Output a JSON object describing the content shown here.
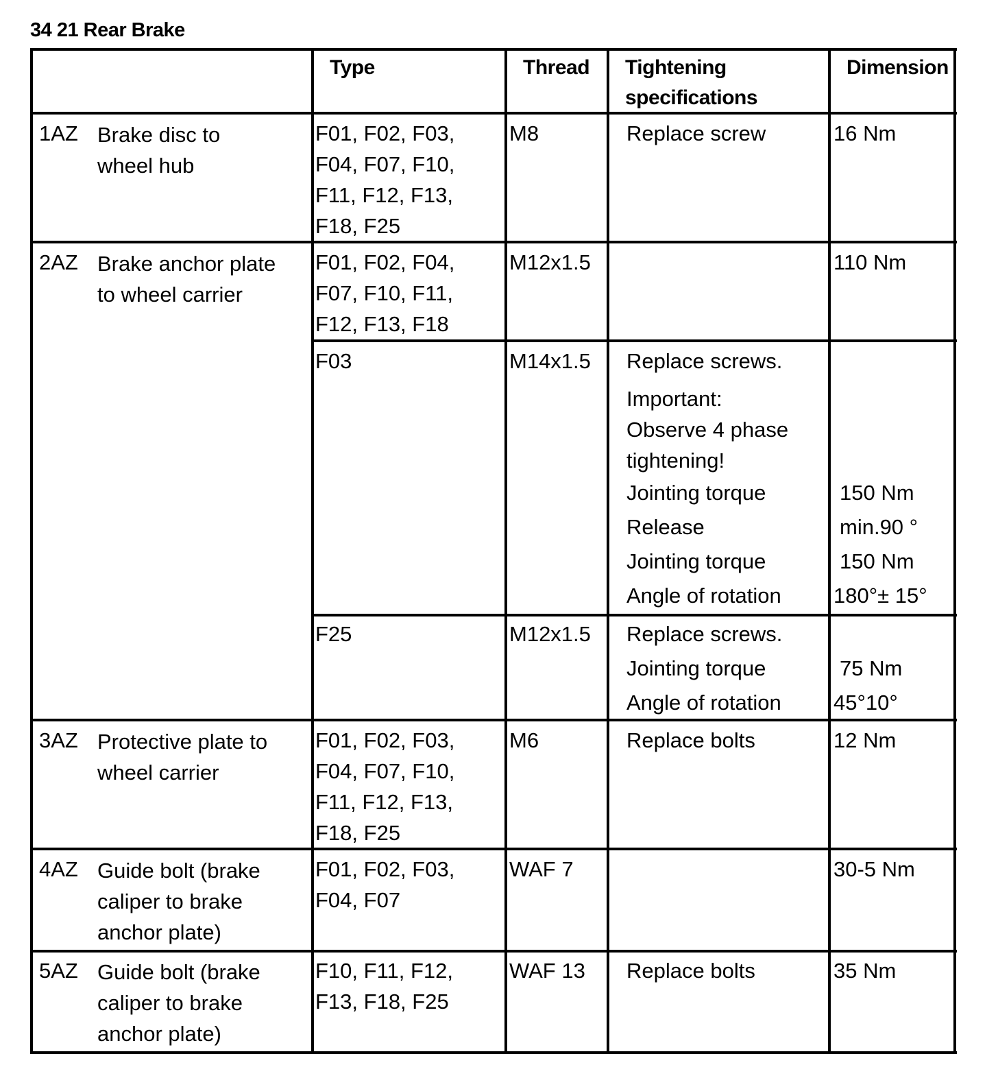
{
  "title": "34 21 Rear Brake",
  "headers": {
    "type": "Type",
    "thread": "Thread",
    "spec": [
      "Tightening",
      "specifications"
    ],
    "dimension": "Dimension"
  },
  "rows": [
    {
      "code": "1AZ",
      "desc": [
        "Brake disc to",
        "wheel hub"
      ],
      "type": [
        "F01, F02, F03,",
        "F04, F07, F10,",
        "F11, F12, F13,",
        "F18, F25"
      ],
      "thread": "M8",
      "spec": [
        "Replace screw"
      ],
      "dim": [
        "16 Nm"
      ]
    },
    {
      "code": "2AZ",
      "desc": [
        "Brake anchor plate",
        "to wheel carrier"
      ],
      "sub": [
        {
          "type": [
            "F01, F02, F04,",
            "F07, F10, F11,",
            "F12, F13, F18"
          ],
          "thread": "M12x1.5",
          "spec": [],
          "dim": [
            "110 Nm"
          ]
        },
        {
          "type": [
            "F03"
          ],
          "thread": "M14x1.5",
          "spec_intro": [
            "Replace screws.",
            "Important:",
            "Observe 4 phase",
            "tightening!"
          ],
          "steps": [
            {
              "label": "Jointing torque",
              "value": "150 Nm"
            },
            {
              "label": "Release",
              "value": "min.90 °"
            },
            {
              "label": "Jointing torque",
              "value": "150 Nm"
            },
            {
              "label": "Angle of rotation",
              "value": "180°± 15°"
            }
          ]
        },
        {
          "type": [
            "F25"
          ],
          "thread": "M12x1.5",
          "spec_intro": [
            "Replace screws."
          ],
          "steps": [
            {
              "label": "Jointing torque",
              "value": "75 Nm"
            },
            {
              "label": "Angle of rotation",
              "value": "45°10°"
            }
          ]
        }
      ]
    },
    {
      "code": "3AZ",
      "desc": [
        "Protective plate to",
        "wheel carrier"
      ],
      "type": [
        "F01, F02, F03,",
        "F04, F07, F10,",
        "F11, F12, F13,",
        "F18, F25"
      ],
      "thread": "M6",
      "spec": [
        "Replace bolts"
      ],
      "dim": [
        "12 Nm"
      ]
    },
    {
      "code": "4AZ",
      "desc": [
        "Guide bolt (brake",
        "caliper to brake",
        "anchor plate)"
      ],
      "type": [
        "F01, F02, F03,",
        "F04, F07"
      ],
      "thread": "WAF 7",
      "spec": [],
      "dim": [
        "30-5 Nm"
      ]
    },
    {
      "code": "5AZ",
      "desc": [
        "Guide bolt (brake",
        "caliper to brake",
        "anchor plate)"
      ],
      "type": [
        "F10, F11, F12,",
        "F13, F18, F25"
      ],
      "thread": "WAF 13",
      "spec": [
        "Replace bolts"
      ],
      "dim": [
        "35 Nm"
      ]
    }
  ]
}
